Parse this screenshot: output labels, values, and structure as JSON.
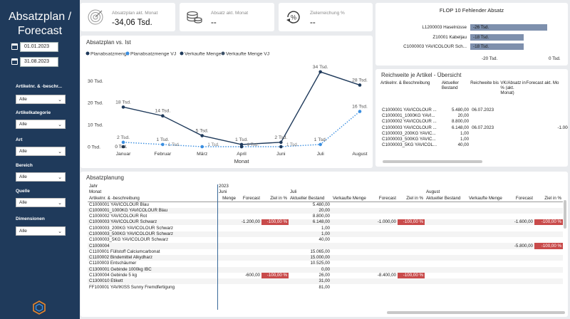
{
  "sidebar": {
    "title_line1": "Absatzplan /",
    "title_line2": "Forecast",
    "date_from": "01.01.2023",
    "date_to": "31.08.2023",
    "filters": [
      {
        "label": "Artikelnr. & -beschr...",
        "value": "Alle"
      },
      {
        "label": "Artikelkategorie",
        "value": "Alle"
      },
      {
        "label": "Art",
        "value": "Alle"
      },
      {
        "label": "Bereich",
        "value": "Alle"
      },
      {
        "label": "Quelle",
        "value": "Alle"
      },
      {
        "label": "Dimensionen",
        "value": "Alle"
      }
    ]
  },
  "kpis": [
    {
      "label": "Absatzplan akt. Monat",
      "value": "-34,06 Tsd.",
      "icon": "target-icon"
    },
    {
      "label": "Absatz akt. Monat",
      "value": "--",
      "icon": "coins-icon"
    },
    {
      "label": "Zielerreichung %",
      "value": "--",
      "icon": "percent-icon"
    }
  ],
  "flop": {
    "title": "FLOP 10 Fehlender Absatz",
    "rows": [
      {
        "name": "L1200003 Haselnüsse",
        "value": "-26 Tsd.",
        "amount": -26
      },
      {
        "name": "Z10001 Kabeljau",
        "value": "-18 Tsd.",
        "amount": -18
      },
      {
        "name": "C1000003 YAVICOLOUR Sch...",
        "value": "-18 Tsd.",
        "amount": -18
      }
    ],
    "axis": [
      "-20 Tsd.",
      "0 Tsd."
    ]
  },
  "chart_title": "Absatzplan vs. Ist",
  "chart_data": {
    "type": "line",
    "categories": [
      "Januar",
      "Februar",
      "März",
      "April",
      "Juni",
      "Juli",
      "August"
    ],
    "xlabel": "Monat",
    "ylabel": "",
    "ylim": [
      0,
      33
    ],
    "yticks": [
      "0 Tsd.",
      "10 Tsd.",
      "20 Tsd.",
      "30 Tsd."
    ],
    "series": [
      {
        "name": "Planabsatzmenge",
        "color": "#1f3a5b",
        "style": "solid",
        "values": [
          18,
          14,
          5,
          1,
          2,
          34,
          28
        ],
        "labels": [
          "18 Tsd.",
          "14 Tsd.",
          "5 Tsd.",
          "1 Tsd.",
          "2 Tsd.",
          "34 Tsd.",
          "28 Tsd."
        ]
      },
      {
        "name": "Planabsatzmenge VJ",
        "color": "#3a8ee0",
        "style": "dotted",
        "values": [
          2,
          1,
          0,
          0,
          0,
          1,
          16
        ],
        "labels": [
          "2 Tsd.",
          "1 Tsd.",
          "",
          "",
          "",
          "1 Tsd.",
          "16 Tsd."
        ]
      },
      {
        "name": "Verkaufte Menge",
        "color": "#1f3a5b",
        "style": "marker",
        "values": [
          0,
          null,
          null,
          0,
          0,
          null,
          null
        ],
        "labels": [
          "0 Tsd.",
          "",
          "",
          "",
          "",
          "",
          ""
        ]
      },
      {
        "name": "Verkaufte Menge VJ",
        "color": "#3b5068",
        "style": "marker",
        "values": [
          null,
          null,
          null,
          null,
          null,
          null,
          null
        ],
        "labels": []
      }
    ],
    "inner_labels": [
      "1 Tsd.",
      "1 Tsd.",
      "1 Tsd.",
      "1 Tsd."
    ]
  },
  "reich": {
    "title": "Reichweite je Artikel - Übersicht",
    "headers": [
      "Artikelnr. & Beschreibung",
      "Aktueller Bestand",
      "Reichweite bis",
      "VK/Absatz in % (akt. Monat)",
      "Forecast akt. Mo"
    ],
    "rows": [
      [
        "C1000001 YAVICOLOUR ...",
        "5.480,00",
        "06.07.2023",
        "",
        ""
      ],
      [
        "C1000001_1000KG YAVI...",
        "20,00",
        "",
        "",
        ""
      ],
      [
        "C1000002 YAVICOLOUR ...",
        "8.800,00",
        "",
        "",
        ""
      ],
      [
        "C1000003 YAVICOLOUR ...",
        "6.148,00",
        "06.07.2023",
        "",
        "-1.000"
      ],
      [
        "C1000003_200KG YAVIC...",
        "1,00",
        "",
        "",
        ""
      ],
      [
        "C1000003_500KG YAVIC...",
        "1,00",
        "",
        "",
        ""
      ],
      [
        "C1000003_5KG YAVICOL...",
        "40,00",
        "",
        "",
        ""
      ]
    ]
  },
  "plan": {
    "title": "Absatzplanung",
    "header_row1": [
      "Jahr",
      "2023",
      "",
      "",
      "",
      "",
      "",
      "",
      "",
      "",
      "",
      ""
    ],
    "header_row2": [
      "Monat",
      "Juni",
      "",
      "",
      "Juli",
      "",
      "",
      "",
      "August",
      "",
      "",
      ""
    ],
    "header_row3": [
      "Artikelnr. & -beschreibung",
      "Menge",
      "Forecast",
      "Ziel in %",
      "Aktueller Bestand",
      "Verkaufte Menge",
      "Forecast",
      "Ziel in %",
      "Aktueller Bestand",
      "Verkaufte Menge",
      "Forecast",
      "Ziel in %"
    ],
    "rows": [
      [
        "C1000001 YAVICOLOUR Blau",
        "",
        "",
        "",
        "5.480,00",
        "",
        "",
        "",
        "",
        "",
        "",
        ""
      ],
      [
        "C1000001_1000KG YAVICOLOUR Blau",
        "",
        "",
        "",
        "20,00",
        "",
        "",
        "",
        "",
        "",
        "",
        ""
      ],
      [
        "C1000002 YAVICOLOUR Rot",
        "",
        "",
        "",
        "8.800,00",
        "",
        "",
        "",
        "",
        "",
        "",
        ""
      ],
      [
        "C1000003 YAVICOLOUR Schwarz",
        "",
        "-1.200,00",
        "-100,00 %",
        "6.148,00",
        "",
        "-1.000,00",
        "-100,00 %",
        "",
        "",
        "-1.600,00",
        "-100,00 %"
      ],
      [
        "C1000003_200KG YAVICOLOUR Schwarz",
        "",
        "",
        "",
        "1,00",
        "",
        "",
        "",
        "",
        "",
        "",
        ""
      ],
      [
        "C1000003_500KG YAVICOLOUR Schwarz",
        "",
        "",
        "",
        "1,00",
        "",
        "",
        "",
        "",
        "",
        "",
        ""
      ],
      [
        "C1000003_5KG YAVICOLOUR Schwarz",
        "",
        "",
        "",
        "40,00",
        "",
        "",
        "",
        "",
        "",
        "",
        ""
      ],
      [
        "C1000004",
        "",
        "",
        "",
        "",
        "",
        "",
        "",
        "",
        "",
        "-5.800,00",
        "-100,00 %"
      ],
      [
        "C1100001 Füllstoff Calciumcarbonat",
        "",
        "",
        "",
        "15.065,00",
        "",
        "",
        "",
        "",
        "",
        "",
        ""
      ],
      [
        "C1100002 Bindemittel Alkydharz",
        "",
        "",
        "",
        "15.000,00",
        "",
        "",
        "",
        "",
        "",
        "",
        ""
      ],
      [
        "C1100003 Entschäumer",
        "",
        "",
        "",
        "10.525,00",
        "",
        "",
        "",
        "",
        "",
        "",
        ""
      ],
      [
        "C1300001 Gebinde 1000kg IBC",
        "",
        "",
        "",
        "0,00",
        "",
        "",
        "",
        "",
        "",
        "",
        ""
      ],
      [
        "C1300004 Gebinde 5 kg",
        "",
        "-600,00",
        "-100,00 %",
        "26,00",
        "",
        "-8.400,00",
        "-100,00 %",
        "",
        "",
        "",
        ""
      ],
      [
        "C1300010 Etikett",
        "",
        "",
        "",
        "31,00",
        "",
        "",
        "",
        "",
        "",
        "",
        ""
      ],
      [
        "FF100001 YAVIKISS Sunny Fremdfertigung",
        "",
        "",
        "",
        "81,00",
        "",
        "",
        "",
        "",
        "",
        "",
        ""
      ]
    ]
  }
}
